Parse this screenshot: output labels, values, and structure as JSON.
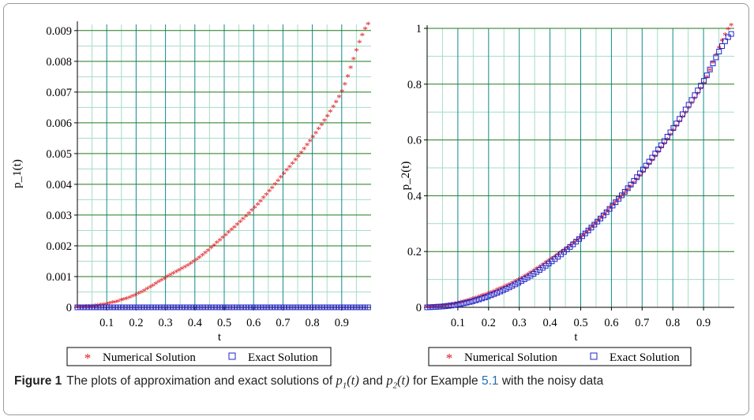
{
  "colors": {
    "numerical": "#e0161b",
    "exact": "#2323c8",
    "grid_major": "#1e7a1e",
    "grid_minor": "#a6dcc6",
    "grid_vertical_major": "#0f8b8d"
  },
  "legend": {
    "numerical_symbol": "*",
    "numerical_label": "Numerical Solution",
    "exact_symbol": "□",
    "exact_label": "Exact Solution"
  },
  "caption": {
    "label": "Figure 1",
    "text_before": "The plots of approximation and exact solutions of ",
    "p1": "p",
    "p1_sub": "1",
    "p1_arg": "(t)",
    "and": " and ",
    "p2": "p",
    "p2_sub": "2",
    "p2_arg": "(t)",
    "for_example": " for Example ",
    "example_ref": "5.1",
    "text_after": " with the noisy data"
  },
  "chart_data": [
    {
      "type": "scatter",
      "xlabel": "t",
      "ylabel": "p_1(t)",
      "xlim": [
        0,
        1
      ],
      "ylim": [
        0,
        0.0092
      ],
      "xticks": [
        0.1,
        0.2,
        0.3,
        0.4,
        0.5,
        0.6,
        0.7,
        0.8,
        0.9
      ],
      "xtick_labels": [
        "0.1",
        "0.2",
        "0.3",
        "0.4",
        "0.5",
        "0.6",
        "0.7",
        "0.8",
        "0.9"
      ],
      "yticks": [
        0,
        0.001,
        0.002,
        0.003,
        0.004,
        0.005,
        0.006,
        0.007,
        0.008,
        0.009
      ],
      "ytick_labels": [
        "0",
        "0.001",
        "0.002",
        "0.003",
        "0.004",
        "0.005",
        "0.006",
        "0.007",
        "0.008",
        "0.009"
      ],
      "grid": true,
      "legend_position": "bottom",
      "series": [
        {
          "name": "Numerical Solution",
          "marker": "star",
          "color": "#e0161b",
          "x": [
            0.0,
            0.1,
            0.2,
            0.3,
            0.4,
            0.5,
            0.6,
            0.7,
            0.8,
            0.9,
            0.99
          ],
          "y": [
            0.0,
            0.0001,
            0.0004,
            0.00095,
            0.0015,
            0.0023,
            0.0032,
            0.0043,
            0.0055,
            0.007,
            0.0092
          ]
        },
        {
          "name": "Exact Solution",
          "marker": "square",
          "color": "#2323c8",
          "x": [
            0.0,
            0.99
          ],
          "y": [
            0.0,
            0.0
          ]
        }
      ]
    },
    {
      "type": "scatter",
      "xlabel": "t",
      "ylabel": "p_2(t)",
      "xlim": [
        0,
        1
      ],
      "ylim": [
        0,
        1.0
      ],
      "xticks": [
        0.1,
        0.2,
        0.3,
        0.4,
        0.5,
        0.6,
        0.7,
        0.8,
        0.9
      ],
      "xtick_labels": [
        "0.1",
        "0.2",
        "0.3",
        "0.4",
        "0.5",
        "0.6",
        "0.7",
        "0.8",
        "0.9"
      ],
      "yticks": [
        0,
        0.2,
        0.4,
        0.6,
        0.8,
        1
      ],
      "ytick_labels": [
        "0",
        "0.2",
        "0.4",
        "0.6",
        "0.8",
        "1"
      ],
      "grid": true,
      "legend_position": "bottom",
      "series": [
        {
          "name": "Numerical Solution",
          "marker": "star",
          "color": "#e0161b",
          "x": [
            0.0,
            0.1,
            0.2,
            0.3,
            0.4,
            0.5,
            0.6,
            0.7,
            0.8,
            0.9,
            0.99
          ],
          "y": [
            0.0,
            0.015,
            0.05,
            0.1,
            0.17,
            0.25,
            0.36,
            0.48,
            0.63,
            0.8,
            1.01
          ]
        },
        {
          "name": "Exact Solution",
          "marker": "square",
          "color": "#2323c8",
          "x": [
            0.0,
            0.1,
            0.2,
            0.3,
            0.4,
            0.5,
            0.6,
            0.7,
            0.8,
            0.9,
            0.99
          ],
          "y": [
            0.0,
            0.01,
            0.04,
            0.09,
            0.16,
            0.25,
            0.36,
            0.49,
            0.64,
            0.81,
            0.98
          ]
        }
      ]
    }
  ]
}
